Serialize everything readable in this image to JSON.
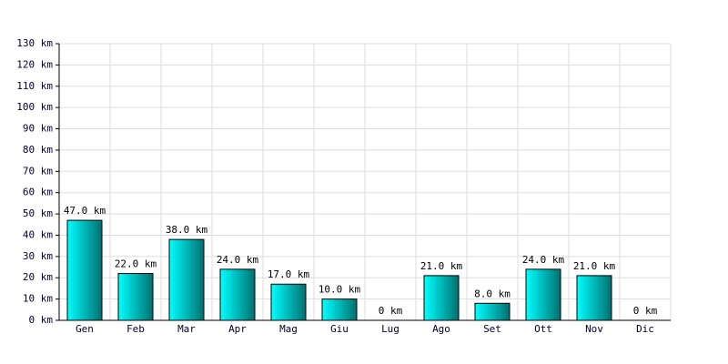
{
  "chart_data": {
    "type": "bar",
    "categories": [
      "Gen",
      "Feb",
      "Mar",
      "Apr",
      "Mag",
      "Giu",
      "Lug",
      "Ago",
      "Set",
      "Ott",
      "Nov",
      "Dic"
    ],
    "values": [
      47,
      22,
      38,
      24,
      17,
      10,
      0,
      21,
      8,
      24,
      21,
      0
    ],
    "value_labels": [
      "47.0 km",
      "22.0 km",
      "38.0 km",
      "24.0 km",
      "17.0 km",
      "10.0 km",
      "0 km",
      "21.0 km",
      "8.0 km",
      "24.0 km",
      "21.0 km",
      "0 km"
    ],
    "color": "#00c8c8",
    "ylim": [
      0,
      130
    ],
    "yticks": [
      {
        "value": 0,
        "label": "0 km"
      },
      {
        "value": 10,
        "label": "10 km"
      },
      {
        "value": 20,
        "label": "20 km"
      },
      {
        "value": 30,
        "label": "30 km"
      },
      {
        "value": 40,
        "label": "40 km"
      },
      {
        "value": 50,
        "label": "50 km"
      },
      {
        "value": 60,
        "label": "60 km"
      },
      {
        "value": 70,
        "label": "70 km"
      },
      {
        "value": 80,
        "label": "80 km"
      },
      {
        "value": 90,
        "label": "90 km"
      },
      {
        "value": 100,
        "label": "100 km"
      },
      {
        "value": 110,
        "label": "110 km"
      },
      {
        "value": 120,
        "label": "120 km"
      },
      {
        "value": 130,
        "label": "130 km"
      }
    ],
    "grid": true
  }
}
